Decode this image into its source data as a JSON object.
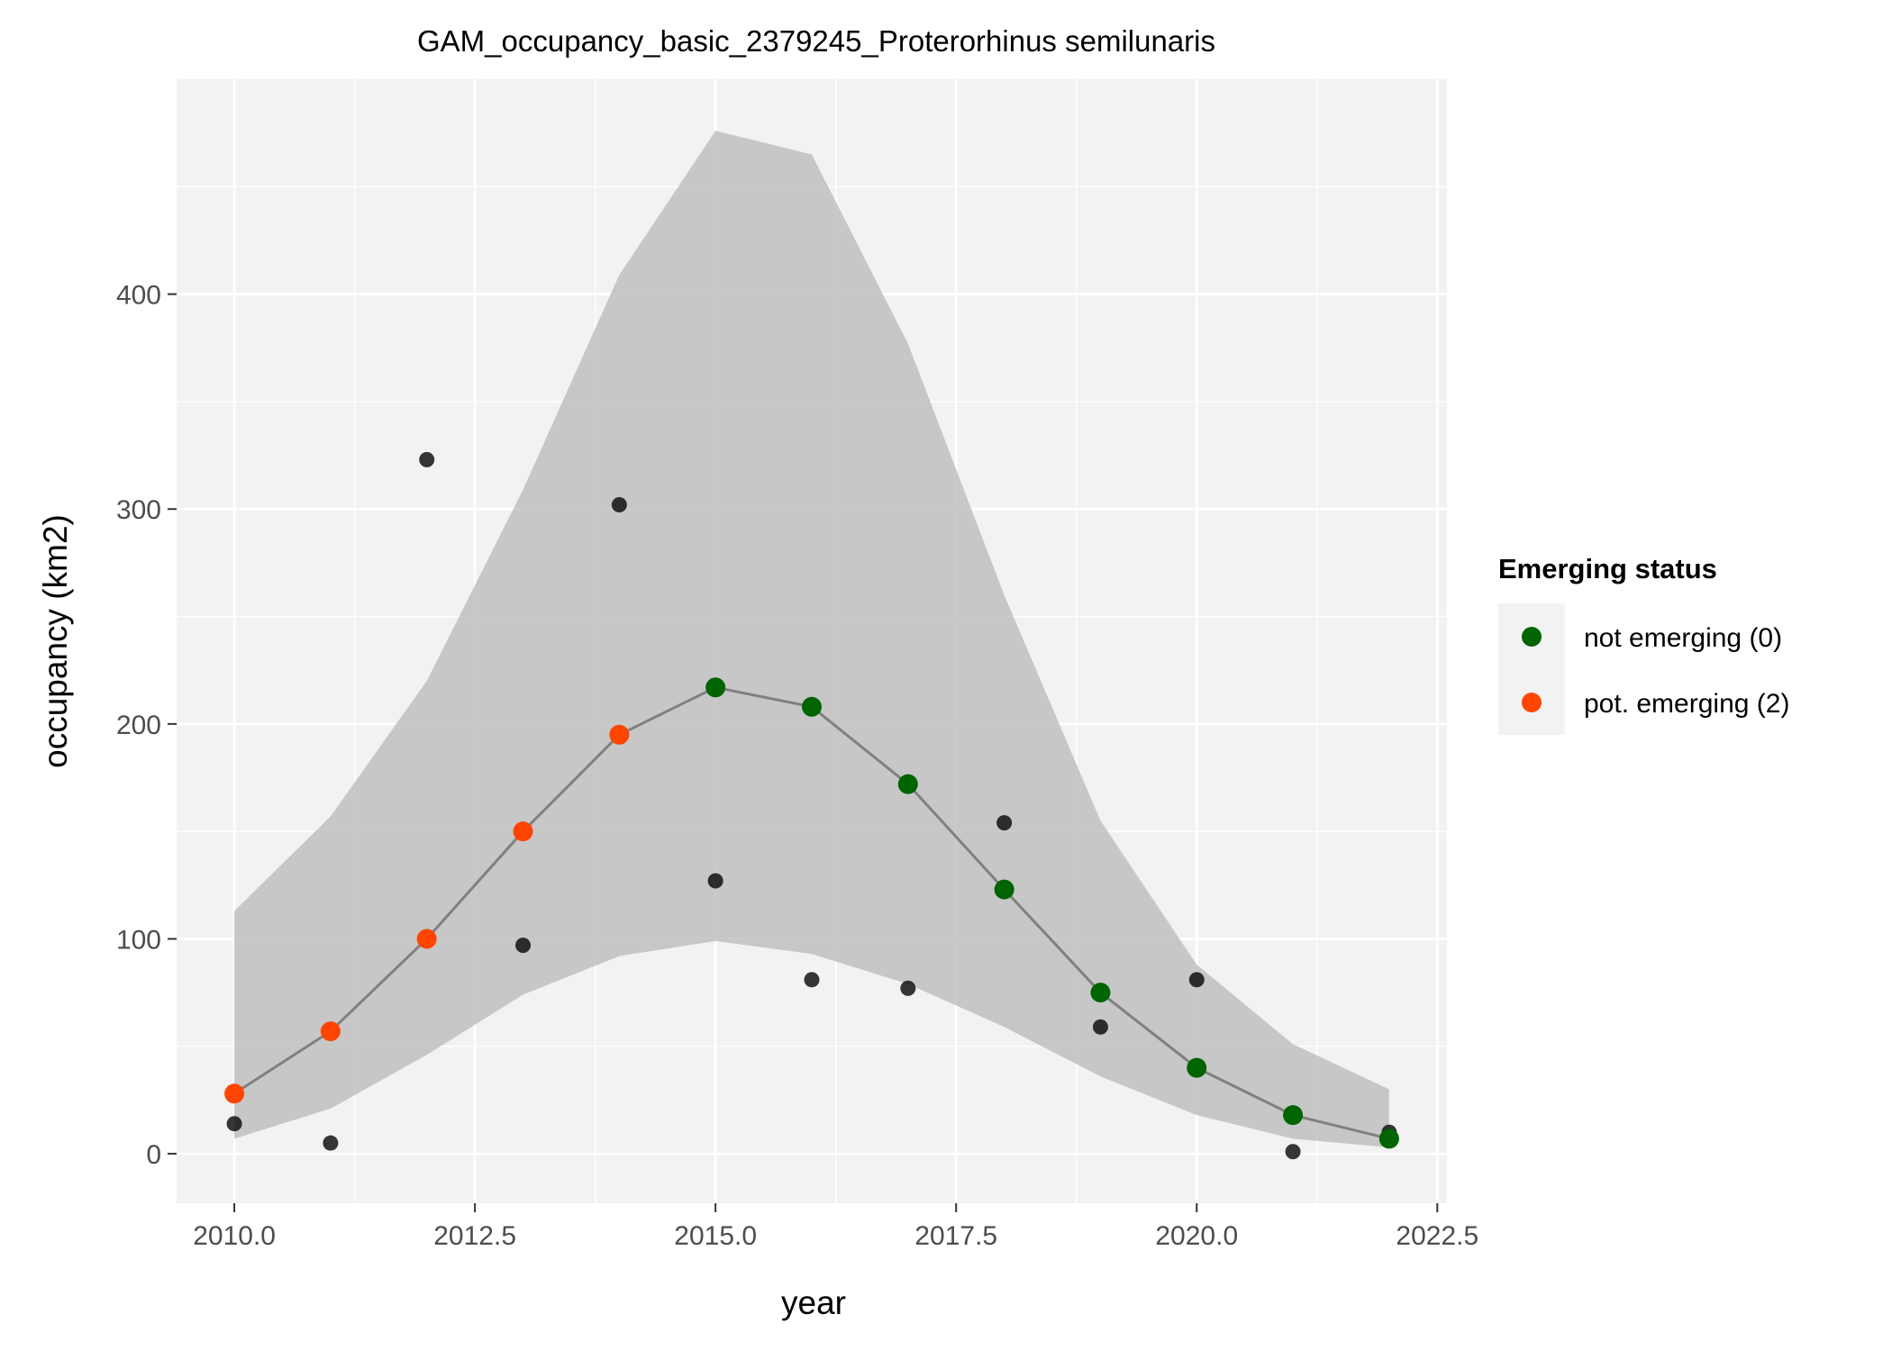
{
  "chart_data": {
    "type": "line",
    "title": "GAM_occupancy_basic_2379245_Proterorhinus semilunaris",
    "xlabel": "year",
    "ylabel": "occupancy (km2)",
    "xlim": [
      2009.4,
      2022.6
    ],
    "ylim": [
      -23,
      500
    ],
    "x_ticks": [
      2010.0,
      2012.5,
      2015.0,
      2017.5,
      2020.0,
      2022.5
    ],
    "x_tick_labels": [
      "2010.0",
      "2012.5",
      "2015.0",
      "2017.5",
      "2020.0",
      "2022.5"
    ],
    "y_ticks": [
      0,
      100,
      200,
      300,
      400
    ],
    "y_tick_labels": [
      "0",
      "100",
      "200",
      "300",
      "400"
    ],
    "grid": true,
    "observed": {
      "x": [
        2010,
        2011,
        2012,
        2013,
        2014,
        2015,
        2016,
        2017,
        2018,
        2019,
        2020,
        2021,
        2022
      ],
      "y": [
        14,
        5,
        323,
        97,
        302,
        127,
        81,
        77,
        154,
        59,
        81,
        1,
        10
      ]
    },
    "fitted": {
      "x": [
        2010,
        2011,
        2012,
        2013,
        2014,
        2015,
        2016,
        2017,
        2018,
        2019,
        2020,
        2021,
        2022
      ],
      "y": [
        28,
        57,
        100,
        150,
        195,
        217,
        208,
        172,
        123,
        75,
        40,
        18,
        7
      ],
      "status": [
        2,
        2,
        2,
        2,
        2,
        0,
        0,
        0,
        0,
        0,
        0,
        0,
        0
      ]
    },
    "band": {
      "lower": [
        7,
        21,
        46,
        74,
        92,
        99,
        93,
        79,
        59,
        36,
        18,
        7,
        3
      ],
      "upper": [
        113,
        157,
        220,
        309,
        409,
        476,
        465,
        377,
        260,
        155,
        88,
        51,
        30
      ]
    },
    "legend": {
      "title": "Emerging status",
      "position": "right",
      "items": [
        {
          "label": "not emerging (0)",
          "status": 0,
          "color": "#006400"
        },
        {
          "label": "pot. emerging (2)",
          "status": 2,
          "color": "#FF4500"
        }
      ]
    }
  }
}
